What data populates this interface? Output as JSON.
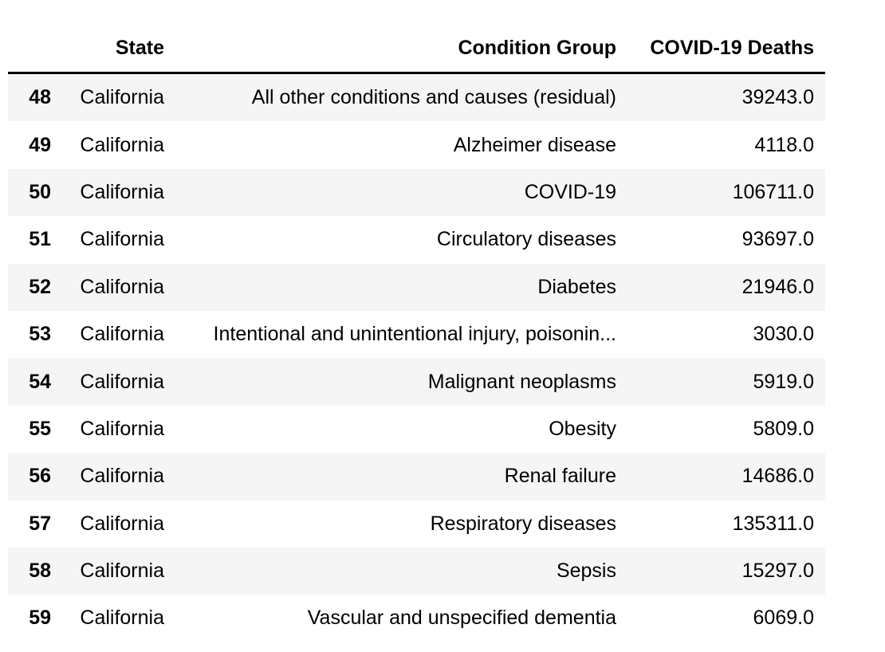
{
  "table": {
    "columns": {
      "index": "",
      "state": "State",
      "condition_group": "Condition Group",
      "covid_deaths": "COVID-19 Deaths"
    },
    "rows": [
      {
        "index": "48",
        "state": "California",
        "condition_group": "All other conditions and causes (residual)",
        "covid_deaths": "39243.0"
      },
      {
        "index": "49",
        "state": "California",
        "condition_group": "Alzheimer disease",
        "covid_deaths": "4118.0"
      },
      {
        "index": "50",
        "state": "California",
        "condition_group": "COVID-19",
        "covid_deaths": "106711.0"
      },
      {
        "index": "51",
        "state": "California",
        "condition_group": "Circulatory diseases",
        "covid_deaths": "93697.0"
      },
      {
        "index": "52",
        "state": "California",
        "condition_group": "Diabetes",
        "covid_deaths": "21946.0"
      },
      {
        "index": "53",
        "state": "California",
        "condition_group": "Intentional and unintentional injury, poisonin...",
        "covid_deaths": "3030.0"
      },
      {
        "index": "54",
        "state": "California",
        "condition_group": "Malignant neoplasms",
        "covid_deaths": "5919.0"
      },
      {
        "index": "55",
        "state": "California",
        "condition_group": "Obesity",
        "covid_deaths": "5809.0"
      },
      {
        "index": "56",
        "state": "California",
        "condition_group": "Renal failure",
        "covid_deaths": "14686.0"
      },
      {
        "index": "57",
        "state": "California",
        "condition_group": "Respiratory diseases",
        "covid_deaths": "135311.0"
      },
      {
        "index": "58",
        "state": "California",
        "condition_group": "Sepsis",
        "covid_deaths": "15297.0"
      },
      {
        "index": "59",
        "state": "California",
        "condition_group": "Vascular and unspecified dementia",
        "covid_deaths": "6069.0"
      }
    ]
  }
}
